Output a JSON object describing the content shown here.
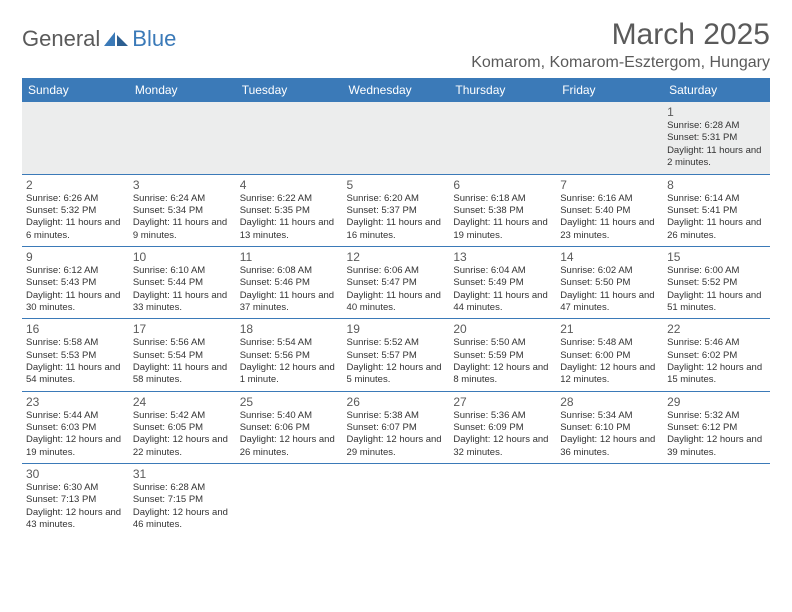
{
  "logo": {
    "part1": "General",
    "part2": "Blue"
  },
  "title": "March 2025",
  "location": "Komarom, Komarom-Esztergom, Hungary",
  "colors": {
    "header_bg": "#3b7ab8",
    "header_text": "#ffffff",
    "title_text": "#5a5a5a",
    "cell_border": "#3b7ab8",
    "empty_bg": "#eceded"
  },
  "dow": [
    "Sunday",
    "Monday",
    "Tuesday",
    "Wednesday",
    "Thursday",
    "Friday",
    "Saturday"
  ],
  "weeks": [
    [
      null,
      null,
      null,
      null,
      null,
      null,
      {
        "d": "1",
        "sr": "6:28 AM",
        "ss": "5:31 PM",
        "dl": "11 hours and 2 minutes."
      }
    ],
    [
      {
        "d": "2",
        "sr": "6:26 AM",
        "ss": "5:32 PM",
        "dl": "11 hours and 6 minutes."
      },
      {
        "d": "3",
        "sr": "6:24 AM",
        "ss": "5:34 PM",
        "dl": "11 hours and 9 minutes."
      },
      {
        "d": "4",
        "sr": "6:22 AM",
        "ss": "5:35 PM",
        "dl": "11 hours and 13 minutes."
      },
      {
        "d": "5",
        "sr": "6:20 AM",
        "ss": "5:37 PM",
        "dl": "11 hours and 16 minutes."
      },
      {
        "d": "6",
        "sr": "6:18 AM",
        "ss": "5:38 PM",
        "dl": "11 hours and 19 minutes."
      },
      {
        "d": "7",
        "sr": "6:16 AM",
        "ss": "5:40 PM",
        "dl": "11 hours and 23 minutes."
      },
      {
        "d": "8",
        "sr": "6:14 AM",
        "ss": "5:41 PM",
        "dl": "11 hours and 26 minutes."
      }
    ],
    [
      {
        "d": "9",
        "sr": "6:12 AM",
        "ss": "5:43 PM",
        "dl": "11 hours and 30 minutes."
      },
      {
        "d": "10",
        "sr": "6:10 AM",
        "ss": "5:44 PM",
        "dl": "11 hours and 33 minutes."
      },
      {
        "d": "11",
        "sr": "6:08 AM",
        "ss": "5:46 PM",
        "dl": "11 hours and 37 minutes."
      },
      {
        "d": "12",
        "sr": "6:06 AM",
        "ss": "5:47 PM",
        "dl": "11 hours and 40 minutes."
      },
      {
        "d": "13",
        "sr": "6:04 AM",
        "ss": "5:49 PM",
        "dl": "11 hours and 44 minutes."
      },
      {
        "d": "14",
        "sr": "6:02 AM",
        "ss": "5:50 PM",
        "dl": "11 hours and 47 minutes."
      },
      {
        "d": "15",
        "sr": "6:00 AM",
        "ss": "5:52 PM",
        "dl": "11 hours and 51 minutes."
      }
    ],
    [
      {
        "d": "16",
        "sr": "5:58 AM",
        "ss": "5:53 PM",
        "dl": "11 hours and 54 minutes."
      },
      {
        "d": "17",
        "sr": "5:56 AM",
        "ss": "5:54 PM",
        "dl": "11 hours and 58 minutes."
      },
      {
        "d": "18",
        "sr": "5:54 AM",
        "ss": "5:56 PM",
        "dl": "12 hours and 1 minute."
      },
      {
        "d": "19",
        "sr": "5:52 AM",
        "ss": "5:57 PM",
        "dl": "12 hours and 5 minutes."
      },
      {
        "d": "20",
        "sr": "5:50 AM",
        "ss": "5:59 PM",
        "dl": "12 hours and 8 minutes."
      },
      {
        "d": "21",
        "sr": "5:48 AM",
        "ss": "6:00 PM",
        "dl": "12 hours and 12 minutes."
      },
      {
        "d": "22",
        "sr": "5:46 AM",
        "ss": "6:02 PM",
        "dl": "12 hours and 15 minutes."
      }
    ],
    [
      {
        "d": "23",
        "sr": "5:44 AM",
        "ss": "6:03 PM",
        "dl": "12 hours and 19 minutes."
      },
      {
        "d": "24",
        "sr": "5:42 AM",
        "ss": "6:05 PM",
        "dl": "12 hours and 22 minutes."
      },
      {
        "d": "25",
        "sr": "5:40 AM",
        "ss": "6:06 PM",
        "dl": "12 hours and 26 minutes."
      },
      {
        "d": "26",
        "sr": "5:38 AM",
        "ss": "6:07 PM",
        "dl": "12 hours and 29 minutes."
      },
      {
        "d": "27",
        "sr": "5:36 AM",
        "ss": "6:09 PM",
        "dl": "12 hours and 32 minutes."
      },
      {
        "d": "28",
        "sr": "5:34 AM",
        "ss": "6:10 PM",
        "dl": "12 hours and 36 minutes."
      },
      {
        "d": "29",
        "sr": "5:32 AM",
        "ss": "6:12 PM",
        "dl": "12 hours and 39 minutes."
      }
    ],
    [
      {
        "d": "30",
        "sr": "6:30 AM",
        "ss": "7:13 PM",
        "dl": "12 hours and 43 minutes."
      },
      {
        "d": "31",
        "sr": "6:28 AM",
        "ss": "7:15 PM",
        "dl": "12 hours and 46 minutes."
      },
      null,
      null,
      null,
      null,
      null
    ]
  ],
  "labels": {
    "sunrise": "Sunrise:",
    "sunset": "Sunset:",
    "daylight": "Daylight:"
  }
}
